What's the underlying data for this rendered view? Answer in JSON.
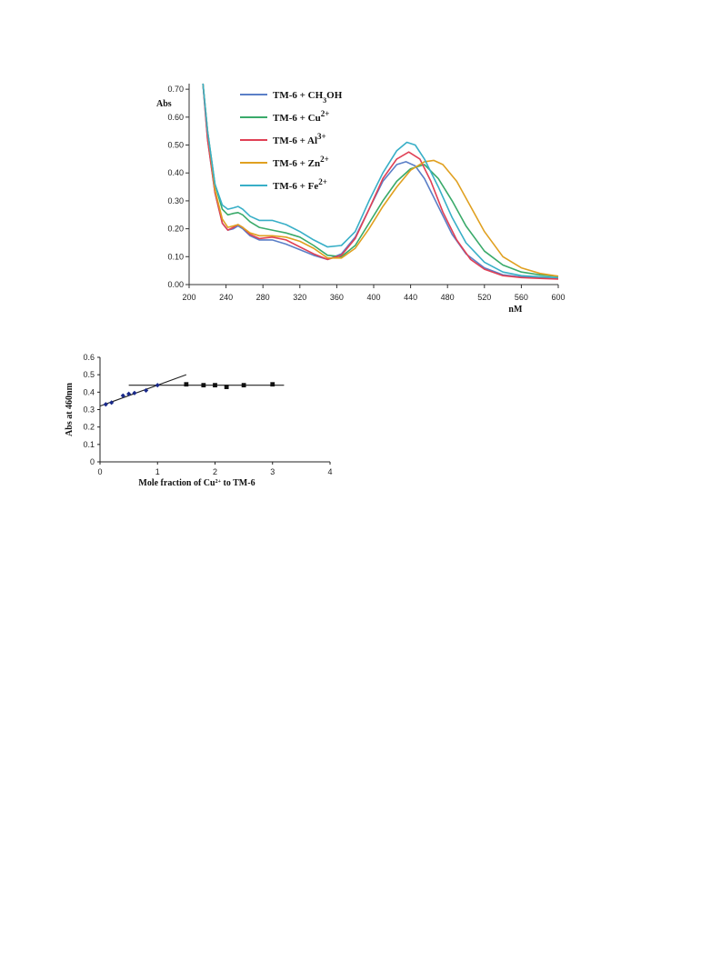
{
  "chart_data": [
    {
      "type": "line",
      "title": "",
      "ylabel": "Abs",
      "xlabel": "nM",
      "xlim": [
        200,
        600
      ],
      "ylim": [
        0,
        0.72
      ],
      "xticks": [
        "200",
        "240",
        "280",
        "320",
        "360",
        "400",
        "440",
        "480",
        "520",
        "560",
        "600"
      ],
      "yticks": [
        "0.00",
        "0.10",
        "0.20",
        "0.30",
        "0.40",
        "0.50",
        "0.60",
        "0.70"
      ],
      "legend_position": "top-left",
      "series": [
        {
          "name": "TM-6 + CH3OH",
          "legend": {
            "pre": "TM-6 + CH",
            "sub": "3",
            "post": "OH",
            "sup": ""
          },
          "color": "#5b7fc7",
          "x": [
            215,
            220,
            228,
            236,
            242,
            248,
            253,
            258,
            266,
            276,
            290,
            305,
            320,
            335,
            350,
            365,
            380,
            395,
            410,
            425,
            435,
            445,
            455,
            470,
            485,
            500,
            520,
            540,
            560,
            580,
            600
          ],
          "y": [
            0.72,
            0.52,
            0.33,
            0.22,
            0.195,
            0.2,
            0.21,
            0.2,
            0.175,
            0.16,
            0.16,
            0.145,
            0.125,
            0.105,
            0.09,
            0.11,
            0.17,
            0.27,
            0.37,
            0.43,
            0.44,
            0.425,
            0.38,
            0.28,
            0.18,
            0.11,
            0.06,
            0.035,
            0.027,
            0.025,
            0.024
          ]
        },
        {
          "name": "TM-6 + Cu2+",
          "legend": {
            "pre": "TM-6 + Cu",
            "sub": "",
            "post": "",
            "sup": "2+"
          },
          "color": "#3aaa6a",
          "x": [
            215,
            220,
            228,
            236,
            242,
            248,
            253,
            258,
            266,
            276,
            290,
            305,
            320,
            335,
            350,
            365,
            380,
            395,
            410,
            425,
            440,
            455,
            470,
            485,
            500,
            520,
            540,
            560,
            580,
            600
          ],
          "y": [
            0.72,
            0.55,
            0.36,
            0.27,
            0.25,
            0.255,
            0.258,
            0.25,
            0.225,
            0.205,
            0.195,
            0.185,
            0.17,
            0.14,
            0.105,
            0.1,
            0.14,
            0.22,
            0.3,
            0.37,
            0.415,
            0.43,
            0.38,
            0.3,
            0.21,
            0.12,
            0.07,
            0.045,
            0.035,
            0.03
          ]
        },
        {
          "name": "TM-6 + Al3+",
          "legend": {
            "pre": "TM-6 + Al",
            "sub": "",
            "post": "",
            "sup": "3+"
          },
          "color": "#e04055",
          "x": [
            215,
            220,
            228,
            236,
            242,
            248,
            253,
            258,
            266,
            276,
            290,
            305,
            320,
            335,
            350,
            365,
            380,
            395,
            410,
            425,
            438,
            450,
            462,
            475,
            490,
            505,
            520,
            540,
            560,
            580,
            600
          ],
          "y": [
            0.72,
            0.52,
            0.33,
            0.22,
            0.195,
            0.205,
            0.215,
            0.205,
            0.18,
            0.165,
            0.17,
            0.16,
            0.135,
            0.11,
            0.09,
            0.105,
            0.165,
            0.27,
            0.38,
            0.45,
            0.475,
            0.45,
            0.37,
            0.26,
            0.16,
            0.09,
            0.055,
            0.032,
            0.025,
            0.022,
            0.02
          ]
        },
        {
          "name": "TM-6 + Zn2+",
          "legend": {
            "pre": "TM-6 + Zn",
            "sub": "",
            "post": "",
            "sup": "2+"
          },
          "color": "#e0a020",
          "x": [
            215,
            220,
            228,
            236,
            242,
            248,
            253,
            258,
            266,
            276,
            290,
            305,
            320,
            335,
            350,
            365,
            380,
            395,
            410,
            425,
            440,
            455,
            465,
            475,
            490,
            505,
            520,
            540,
            560,
            580,
            600
          ],
          "y": [
            0.72,
            0.55,
            0.34,
            0.235,
            0.205,
            0.21,
            0.215,
            0.205,
            0.185,
            0.175,
            0.175,
            0.17,
            0.155,
            0.13,
            0.095,
            0.095,
            0.13,
            0.2,
            0.28,
            0.35,
            0.41,
            0.44,
            0.445,
            0.43,
            0.37,
            0.28,
            0.19,
            0.1,
            0.06,
            0.04,
            0.03
          ]
        },
        {
          "name": "TM-6 + Fe2+",
          "legend": {
            "pre": "TM-6 + Fe",
            "sub": "",
            "post": "",
            "sup": "2+"
          },
          "color": "#38afc7",
          "x": [
            215,
            220,
            228,
            236,
            242,
            248,
            253,
            258,
            266,
            276,
            290,
            305,
            320,
            335,
            350,
            365,
            380,
            395,
            410,
            425,
            436,
            445,
            455,
            470,
            485,
            500,
            520,
            540,
            560,
            580,
            600
          ],
          "y": [
            0.72,
            0.55,
            0.36,
            0.285,
            0.27,
            0.275,
            0.28,
            0.27,
            0.245,
            0.23,
            0.23,
            0.215,
            0.19,
            0.16,
            0.135,
            0.14,
            0.19,
            0.3,
            0.4,
            0.48,
            0.51,
            0.5,
            0.45,
            0.35,
            0.24,
            0.15,
            0.08,
            0.045,
            0.032,
            0.028,
            0.025
          ]
        }
      ]
    },
    {
      "type": "scatter",
      "title": "",
      "ylabel": "Abs at 460nm",
      "xlabel": {
        "pre": "Mole fraction of Cu",
        "sup": "2+",
        "post": " to TM-6"
      },
      "xlim": [
        0,
        4
      ],
      "ylim": [
        0,
        0.6
      ],
      "xticks": [
        "0",
        "1",
        "2",
        "3",
        "4"
      ],
      "yticks": [
        "0",
        "0.1",
        "0.2",
        "0.3",
        "0.4",
        "0.5",
        "0.6"
      ],
      "series": [
        {
          "marker": "diamond",
          "color": "#1a2a8a",
          "x": [
            0.1,
            0.2,
            0.4,
            0.5,
            0.6,
            0.8,
            1.0
          ],
          "y": [
            0.33,
            0.34,
            0.38,
            0.39,
            0.395,
            0.41,
            0.44
          ]
        },
        {
          "marker": "square",
          "color": "#111111",
          "x": [
            1.5,
            1.8,
            2.0,
            2.2,
            2.5,
            3.0
          ],
          "y": [
            0.445,
            0.44,
            0.44,
            0.43,
            0.44,
            0.445
          ]
        }
      ],
      "fit_lines": [
        {
          "x": [
            0.0,
            1.5
          ],
          "y": [
            0.32,
            0.5
          ]
        },
        {
          "x": [
            0.5,
            3.2
          ],
          "y": [
            0.44,
            0.44
          ]
        }
      ]
    }
  ]
}
